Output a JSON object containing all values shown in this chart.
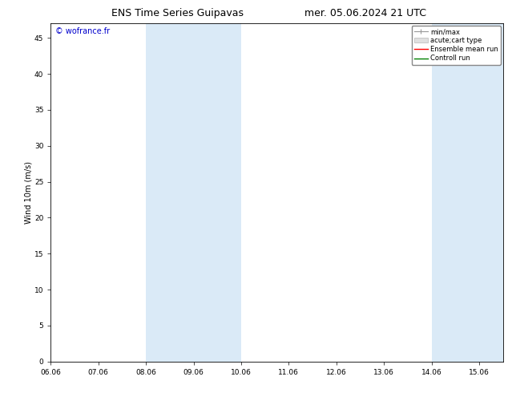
{
  "title_left": "ENS Time Series Guipavas",
  "title_right": "mer. 05.06.2024 21 UTC",
  "ylabel": "Wind 10m (m/s)",
  "xlim_start": 0,
  "xlim_end": 9.5,
  "ylim": [
    0,
    47
  ],
  "yticks": [
    0,
    5,
    10,
    15,
    20,
    25,
    30,
    35,
    40,
    45
  ],
  "xtick_labels": [
    "06.06",
    "07.06",
    "08.06",
    "09.06",
    "10.06",
    "11.06",
    "12.06",
    "13.06",
    "14.06",
    "15.06"
  ],
  "bg_color": "#ffffff",
  "plot_bg_color": "#ffffff",
  "shaded_color": "#daeaf7",
  "shaded_groups": [
    {
      "x_start": 2.0,
      "x_end": 4.0
    },
    {
      "x_start": 8.0,
      "x_end": 9.5
    }
  ],
  "watermark_text": "© wofrance.fr",
  "watermark_color": "#0000cc",
  "legend_items": [
    {
      "label": "min/max",
      "color": "#999999",
      "style": "minmax"
    },
    {
      "label": "acute;cart type",
      "color": "#cccccc",
      "style": "bar"
    },
    {
      "label": "Ensemble mean run",
      "color": "#ff0000",
      "style": "line"
    },
    {
      "label": "Controll run",
      "color": "#008000",
      "style": "line"
    }
  ],
  "font_size_title": 9,
  "font_size_axis": 7,
  "font_size_ticks": 6.5,
  "font_size_legend": 6,
  "font_size_watermark": 7,
  "tick_color": "#000000",
  "spine_color": "#000000"
}
